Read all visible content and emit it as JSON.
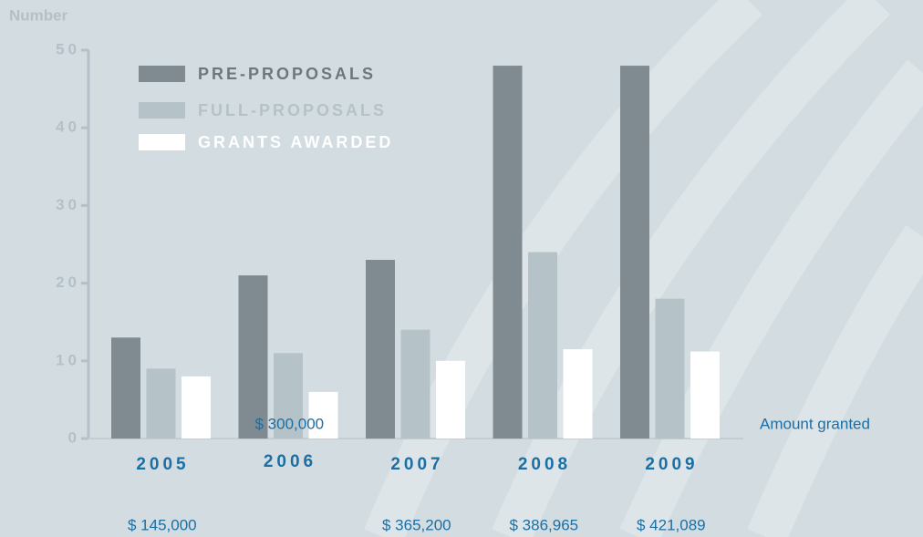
{
  "chart_data": {
    "type": "bar",
    "y_axis_label": "Number",
    "categories": [
      "2005",
      "2006",
      "2007",
      "2008",
      "2009"
    ],
    "series": [
      {
        "name": "PRE-PROPOSALS",
        "color": "#7f8a91",
        "values": [
          13,
          21,
          23,
          48,
          48
        ]
      },
      {
        "name": "FULL-PROPOSALS",
        "color": "#b5c2c8",
        "values": [
          9,
          11,
          14,
          24,
          18
        ]
      },
      {
        "name": "GRANTS AWARDED",
        "color": "#ffffff",
        "values": [
          8,
          6,
          10,
          11.5,
          11.2
        ]
      }
    ],
    "ylim": [
      0,
      50
    ],
    "yticks": [
      0,
      10,
      20,
      30,
      40,
      50
    ],
    "amount_label": "Amount granted",
    "amounts": [
      "$ 145,000",
      "$ 300,000",
      "$ 365,200",
      "$ 386,965",
      "$ 421,089"
    ]
  }
}
